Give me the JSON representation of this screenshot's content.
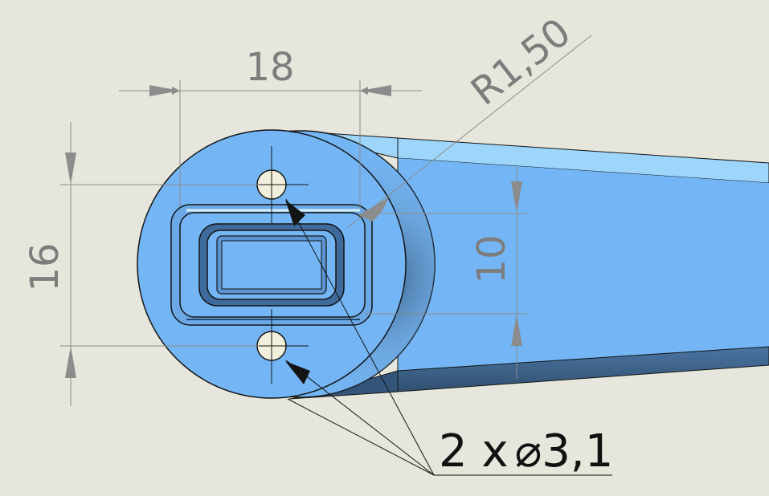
{
  "drawing": {
    "colors": {
      "background": "#e6e6dc",
      "part_face": "#74b6f5",
      "part_top": "#9ed6fb",
      "part_dark": "#3d6690",
      "dimension": "#8c8c8c",
      "outline": "#141414"
    },
    "dimensions": {
      "width": "18",
      "radius": "R1,50",
      "height_left": "16",
      "height_right": "10"
    },
    "callout": {
      "count": "2 x",
      "diameter_symbol": "⌀",
      "value": "3,1"
    }
  }
}
